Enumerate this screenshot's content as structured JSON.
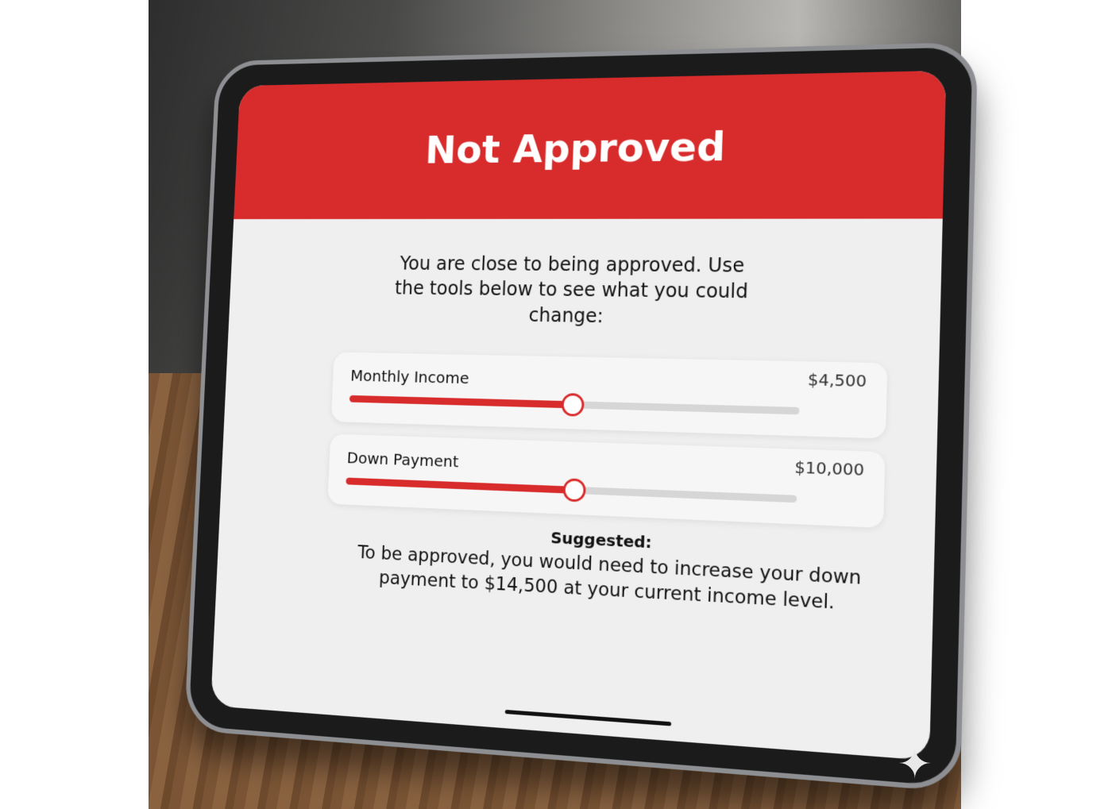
{
  "screen": {
    "title": "Not Approved",
    "intro": "You are close to being approved. Use the tools below to see what you could change:",
    "sliders": [
      {
        "label": "Monthly Income",
        "value": "$4,500",
        "fraction": 0.51
      },
      {
        "label": "Down Payment",
        "value": "$10,000",
        "fraction": 0.52
      }
    ],
    "suggested_title": "Suggested:",
    "suggested_text": "To be approved, you would need to increase your down payment to $14,500 at your current income level."
  },
  "colors": {
    "accent": "#d82c2c",
    "background": "#efefef"
  },
  "icons": {
    "watermark": "sparkle-icon"
  }
}
